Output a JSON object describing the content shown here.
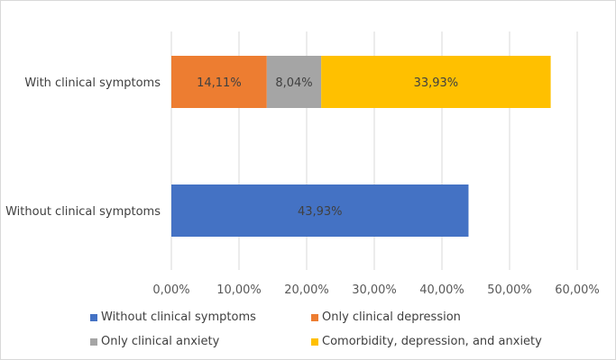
{
  "chart_data": {
    "type": "bar",
    "orientation": "horizontal",
    "stacked": true,
    "categories": [
      "With clinical symptoms",
      "Without clinical symptoms"
    ],
    "series": [
      {
        "name": "Without clinical symptoms",
        "color": "#4472c4",
        "values": [
          0,
          43.93
        ],
        "labels": [
          "",
          "43,93%"
        ]
      },
      {
        "name": "Only clinical depression",
        "color": "#ed7d31",
        "values": [
          14.11,
          0
        ],
        "labels": [
          "14,11%",
          ""
        ]
      },
      {
        "name": "Only clinical anxiety",
        "color": "#a5a5a5",
        "values": [
          8.04,
          0
        ],
        "labels": [
          "8,04%",
          ""
        ]
      },
      {
        "name": "Comorbidity, depression, and anxiety",
        "color": "#ffc000",
        "values": [
          33.93,
          0
        ],
        "labels": [
          "33,93%",
          ""
        ]
      }
    ],
    "xlim": [
      0,
      60
    ],
    "xticks": [
      0,
      10,
      20,
      30,
      40,
      50,
      60
    ],
    "xtick_labels": [
      "0,00%",
      "10,00%",
      "20,00%",
      "30,00%",
      "40,00%",
      "50,00%",
      "60,00%"
    ],
    "grid": true,
    "legend_position": "bottom",
    "title": "",
    "xlabel": "",
    "ylabel": ""
  }
}
